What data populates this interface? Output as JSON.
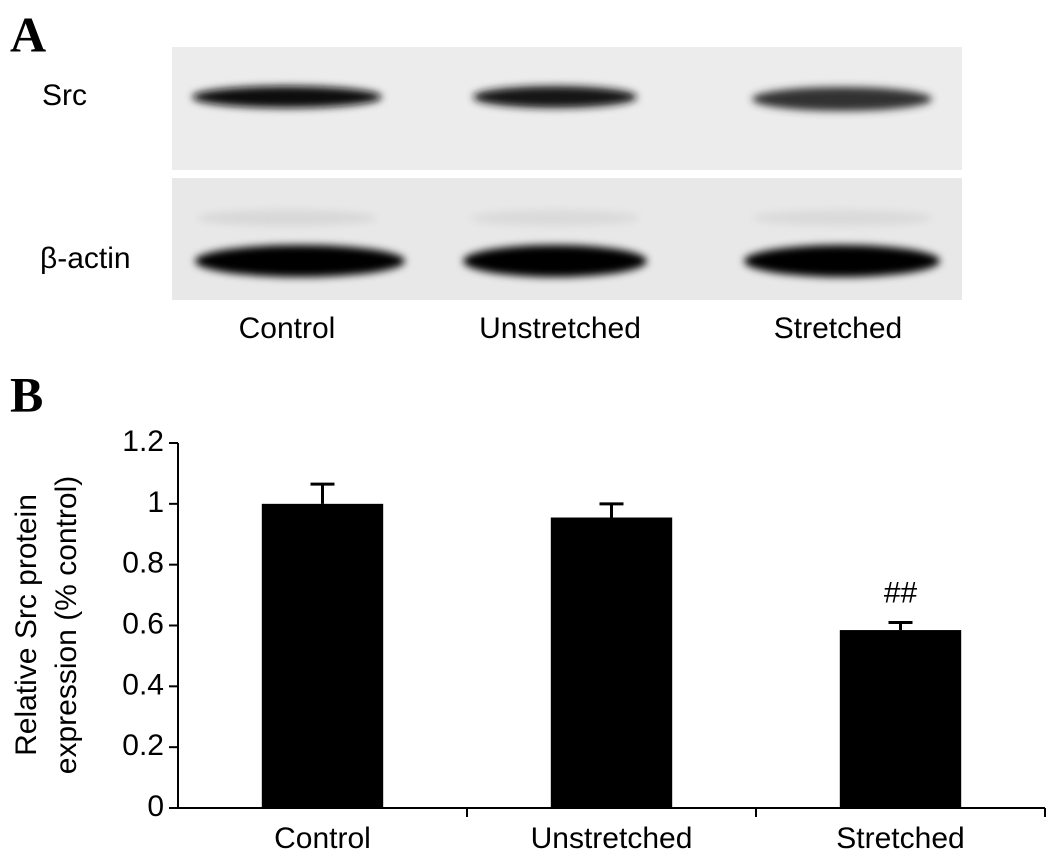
{
  "panel_a": {
    "label": "A",
    "rows": [
      "Src",
      "β-actin"
    ],
    "lanes": [
      "Control",
      "Unstretched",
      "Stretched"
    ]
  },
  "chart_data": {
    "type": "bar",
    "panel_label": "B",
    "ylabel": [
      "Relative Src protein",
      "expression (% control)"
    ],
    "categories": [
      "Control",
      "Unstretched",
      "Stretched"
    ],
    "values": [
      1.0,
      0.955,
      0.585
    ],
    "errors": [
      0.065,
      0.045,
      0.025
    ],
    "significance": [
      null,
      null,
      "##"
    ],
    "color": "#000000",
    "ylim": [
      0,
      1.2
    ],
    "yticks": [
      0,
      0.2,
      0.4,
      0.6,
      0.8,
      1,
      1.2
    ]
  }
}
